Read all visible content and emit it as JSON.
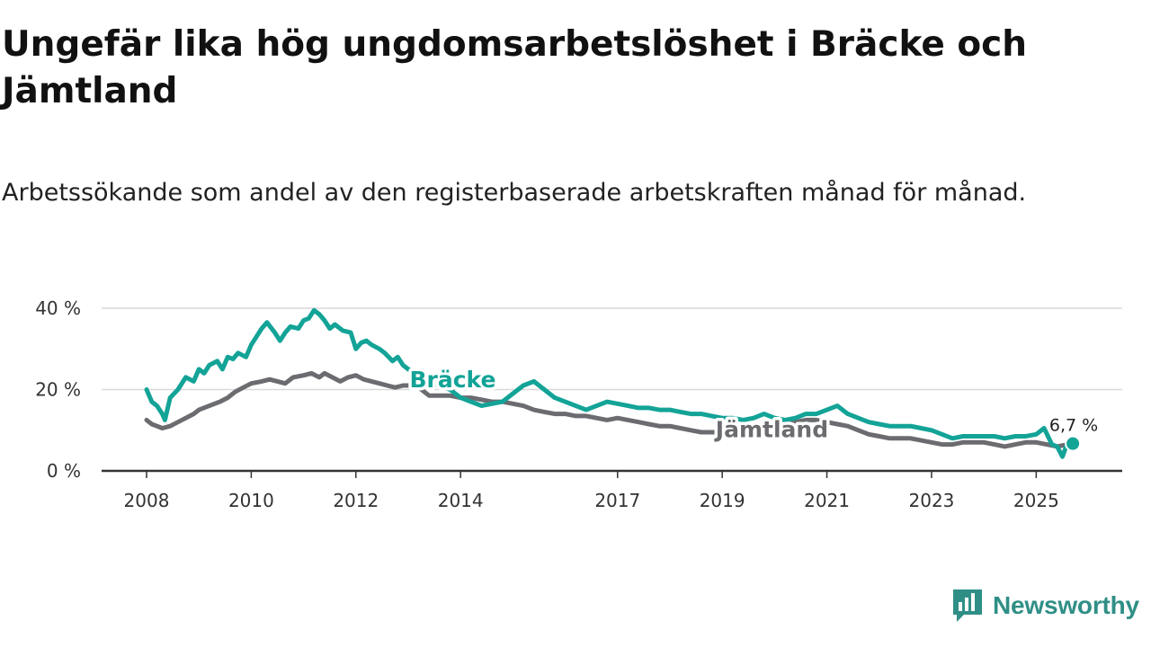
{
  "title": "Ungefär lika hög ungdomsarbetslöshet i Bräcke och Jämtland",
  "subtitle": "Arbetssökande som andel av den registerbaserade arbetskraften månad för månad.",
  "brand": {
    "name": "Newsworthy",
    "icon": "newsworthy-logo-icon",
    "color": "#2f8f86"
  },
  "chart_data": {
    "type": "line",
    "title": "Ungefär lika hög ungdomsarbetslöshet i Bräcke och Jämtland",
    "subtitle": "Arbetssökande som andel av den registerbaserade arbetskraften månad för månad.",
    "xlabel": "",
    "ylabel": "",
    "ylim": [
      0,
      40
    ],
    "xlim": [
      2008.0,
      2025.75
    ],
    "yticks": [
      0,
      20,
      40
    ],
    "ytick_labels": [
      "0 %",
      "20 %",
      "40 %"
    ],
    "xticks": [
      2008,
      2010,
      2012,
      2014,
      2017,
      2019,
      2021,
      2023,
      2025
    ],
    "xtick_labels": [
      "2008",
      "2010",
      "2012",
      "2014",
      "2017",
      "2019",
      "2021",
      "2023",
      "2025"
    ],
    "grid": "horizontal",
    "end_label": "6,7 %",
    "series": [
      {
        "name": "Bräcke",
        "color": "#13a397",
        "x": [
          2008.0,
          2008.1,
          2008.2,
          2008.3,
          2008.35,
          2008.45,
          2008.6,
          2008.75,
          2008.9,
          2009.0,
          2009.1,
          2009.2,
          2009.35,
          2009.45,
          2009.55,
          2009.65,
          2009.75,
          2009.9,
          2010.0,
          2010.1,
          2010.2,
          2010.3,
          2010.45,
          2010.55,
          2010.65,
          2010.75,
          2010.9,
          2011.0,
          2011.1,
          2011.2,
          2011.3,
          2011.4,
          2011.5,
          2011.6,
          2011.75,
          2011.9,
          2012.0,
          2012.1,
          2012.2,
          2012.3,
          2012.45,
          2012.55,
          2012.7,
          2012.8,
          2012.9,
          2013.0,
          2013.2,
          2013.4,
          2013.6,
          2013.8,
          2014.0,
          2014.2,
          2014.4,
          2014.6,
          2014.8,
          2015.0,
          2015.2,
          2015.4,
          2015.6,
          2015.8,
          2016.0,
          2016.2,
          2016.4,
          2016.6,
          2016.8,
          2017.0,
          2017.2,
          2017.4,
          2017.6,
          2017.8,
          2018.0,
          2018.2,
          2018.4,
          2018.6,
          2018.8,
          2019.0,
          2019.2,
          2019.4,
          2019.6,
          2019.8,
          2020.0,
          2020.2,
          2020.4,
          2020.6,
          2020.8,
          2021.0,
          2021.2,
          2021.4,
          2021.6,
          2021.8,
          2022.0,
          2022.2,
          2022.4,
          2022.6,
          2022.8,
          2023.0,
          2023.2,
          2023.4,
          2023.6,
          2023.8,
          2024.0,
          2024.2,
          2024.4,
          2024.6,
          2024.8,
          2025.0,
          2025.15,
          2025.3,
          2025.4,
          2025.5,
          2025.6,
          2025.7
        ],
        "values": [
          20,
          17,
          16,
          14,
          12.5,
          18,
          20,
          23,
          22,
          25,
          24,
          26,
          27,
          25,
          28,
          27.5,
          29,
          28,
          31,
          33,
          35,
          36.5,
          34,
          32,
          34,
          35.5,
          35,
          37,
          37.5,
          39.5,
          38.5,
          37,
          35,
          36,
          34.5,
          34,
          30,
          31.5,
          32,
          31,
          30,
          29,
          27,
          28,
          26,
          25,
          24,
          22,
          21,
          20,
          18,
          17,
          16,
          16.5,
          17,
          19,
          21,
          22,
          20,
          18,
          17,
          16,
          15,
          16,
          17,
          16.5,
          16,
          15.5,
          15.5,
          15,
          15,
          14.5,
          14,
          14,
          13.5,
          13,
          13,
          12.5,
          13,
          14,
          13,
          12.5,
          13,
          14,
          14,
          15,
          16,
          14,
          13,
          12,
          11.5,
          11,
          11,
          11,
          10.5,
          10,
          9,
          8,
          8.5,
          8.5,
          8.5,
          8.5,
          8,
          8.5,
          8.5,
          9,
          10.5,
          6.5,
          6,
          3.5,
          7,
          6.7
        ]
      },
      {
        "name": "Jämtland",
        "color": "#6b6b70",
        "x": [
          2008.0,
          2008.1,
          2008.2,
          2008.3,
          2008.45,
          2008.6,
          2008.75,
          2008.9,
          2009.0,
          2009.2,
          2009.4,
          2009.55,
          2009.7,
          2009.85,
          2010.0,
          2010.2,
          2010.35,
          2010.5,
          2010.65,
          2010.8,
          2011.0,
          2011.15,
          2011.3,
          2011.4,
          2011.55,
          2011.7,
          2011.85,
          2012.0,
          2012.15,
          2012.3,
          2012.45,
          2012.6,
          2012.75,
          2012.9,
          2013.0,
          2013.2,
          2013.4,
          2013.6,
          2013.8,
          2014.0,
          2014.2,
          2014.4,
          2014.6,
          2014.8,
          2015.0,
          2015.2,
          2015.4,
          2015.6,
          2015.8,
          2016.0,
          2016.2,
          2016.4,
          2016.6,
          2016.8,
          2017.0,
          2017.2,
          2017.4,
          2017.6,
          2017.8,
          2018.0,
          2018.2,
          2018.4,
          2018.6,
          2018.8,
          2019.0,
          2019.2,
          2019.4,
          2019.6,
          2019.8,
          2020.0,
          2020.2,
          2020.4,
          2020.6,
          2020.8,
          2021.0,
          2021.2,
          2021.4,
          2021.6,
          2021.8,
          2022.0,
          2022.2,
          2022.4,
          2022.6,
          2022.8,
          2023.0,
          2023.2,
          2023.4,
          2023.6,
          2023.8,
          2024.0,
          2024.2,
          2024.4,
          2024.6,
          2024.8,
          2025.0,
          2025.2,
          2025.4,
          2025.6,
          2025.7
        ],
        "values": [
          12.5,
          11.5,
          11,
          10.5,
          11,
          12,
          13,
          14,
          15,
          16,
          17,
          18,
          19.5,
          20.5,
          21.5,
          22,
          22.5,
          22,
          21.5,
          23,
          23.5,
          24,
          23,
          24,
          23,
          22,
          23,
          23.5,
          22.5,
          22,
          21.5,
          21,
          20.5,
          21,
          21,
          20.5,
          18.5,
          18.5,
          18.5,
          18,
          18,
          17.5,
          17,
          17,
          16.5,
          16,
          15,
          14.5,
          14,
          14,
          13.5,
          13.5,
          13,
          12.5,
          13,
          12.5,
          12,
          11.5,
          11,
          11,
          10.5,
          10,
          9.5,
          9.5,
          9.5,
          9,
          9.5,
          10,
          10.5,
          11,
          11.5,
          12,
          12.5,
          12.5,
          12,
          11.5,
          11,
          10,
          9,
          8.5,
          8,
          8,
          8,
          7.5,
          7,
          6.5,
          6.5,
          7,
          7,
          7,
          6.5,
          6,
          6.5,
          7,
          7,
          6.5,
          6,
          6.5,
          6.7
        ]
      }
    ]
  }
}
